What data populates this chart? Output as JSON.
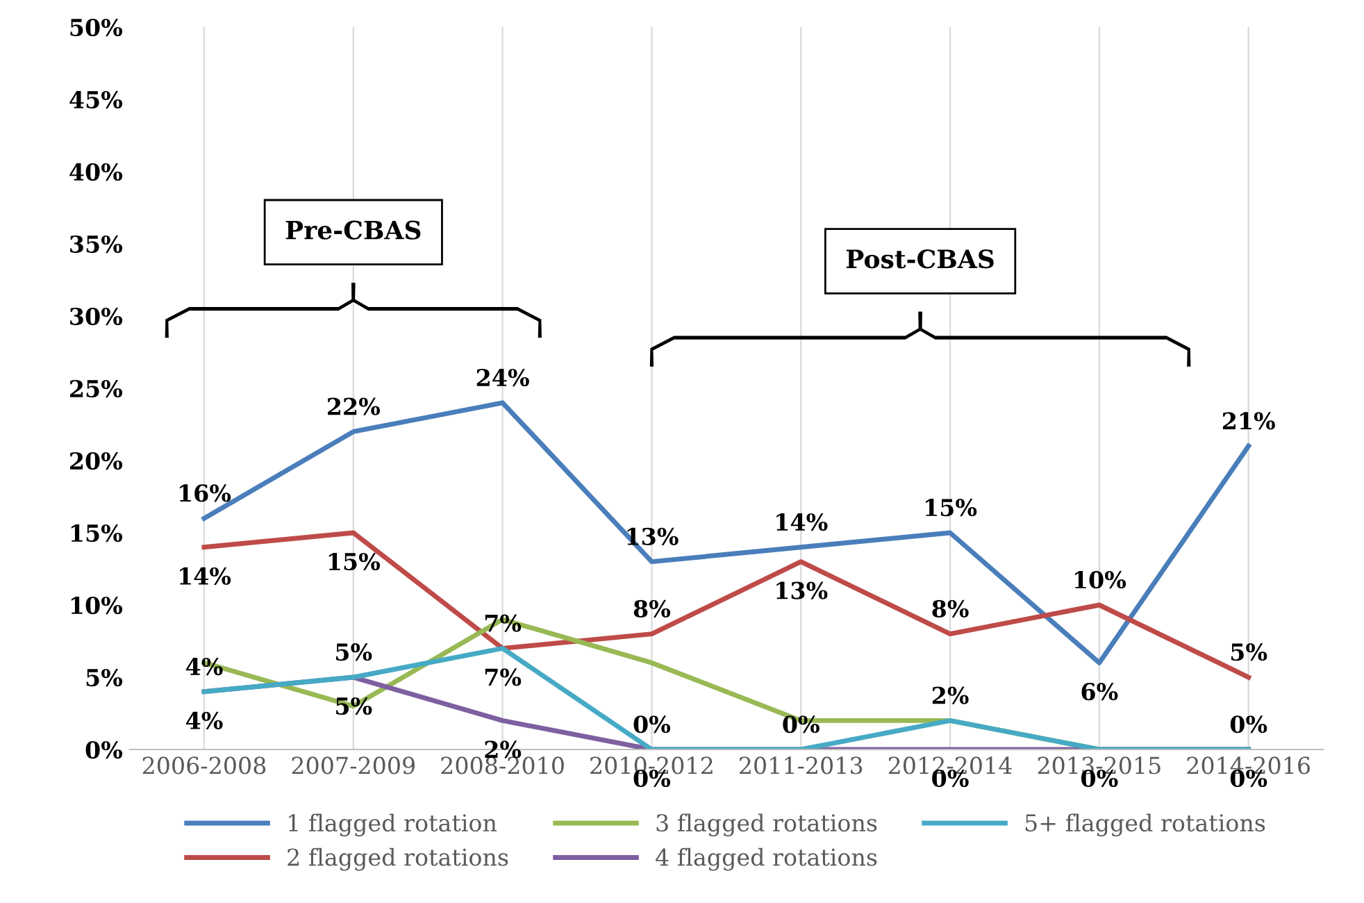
{
  "chart_data": {
    "type": "line",
    "categories": [
      "2006-2008",
      "2007-2009",
      "2008-2010",
      "2010-2012",
      "2011-2013",
      "2012-2014",
      "2013-2015",
      "2014-2016"
    ],
    "series": [
      {
        "name": "1 flagged rotation",
        "color": "#4a7ebb",
        "values": [
          16,
          22,
          24,
          13,
          14,
          15,
          6,
          21
        ],
        "value_labels": [
          "16%",
          "22%",
          "24%",
          "13%",
          "14%",
          "15%",
          "6%",
          "21%"
        ]
      },
      {
        "name": "2 flagged rotations",
        "color": "#be4b48",
        "values": [
          14,
          15,
          7,
          8,
          13,
          8,
          10,
          5
        ],
        "value_labels": [
          "14%",
          "15%",
          "7%",
          "8%",
          "13%",
          "8%",
          "10%",
          "5%"
        ]
      },
      {
        "name": "3 flagged rotations",
        "color": "#98b954",
        "values": [
          6,
          3,
          9,
          6,
          2,
          2,
          0,
          0
        ]
      },
      {
        "name": "4 flagged rotations",
        "color": "#7d60a0",
        "values": [
          4,
          5,
          2,
          0,
          0,
          0,
          0,
          0
        ],
        "value_labels": [
          "4%",
          "5%",
          "2%",
          "0%",
          null,
          "0%",
          "0%",
          "0%"
        ]
      },
      {
        "name": "5+ flagged rotations",
        "color": "#46aac5",
        "values": [
          4,
          5,
          7,
          0,
          0,
          2,
          0,
          0
        ],
        "value_labels": [
          "4%",
          "5%",
          "7%",
          "0%",
          "0%",
          "2%",
          null,
          "0%"
        ]
      }
    ],
    "ylim": [
      0,
      50
    ],
    "yticks": [
      {
        "value": 0,
        "label": "0%"
      },
      {
        "value": 5,
        "label": "5%"
      },
      {
        "value": 10,
        "label": "10%"
      },
      {
        "value": 15,
        "label": "15%"
      },
      {
        "value": 20,
        "label": "20%"
      },
      {
        "value": 25,
        "label": "25%"
      },
      {
        "value": 30,
        "label": "30%"
      },
      {
        "value": 35,
        "label": "35%"
      },
      {
        "value": 40,
        "label": "40%"
      },
      {
        "value": 45,
        "label": "45%"
      },
      {
        "value": 50,
        "label": "50%"
      }
    ],
    "grid": "x",
    "legend": "bottom",
    "marker": "none",
    "line_style": "solid",
    "annotations": [
      "Pre-CBAS",
      "Post-CBAS"
    ]
  }
}
